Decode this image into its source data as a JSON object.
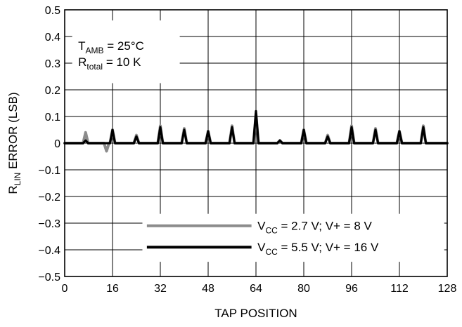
{
  "chart_data": {
    "type": "line",
    "xlabel": "TAP POSITION",
    "ylabel": {
      "main": "R",
      "sub": "LIN",
      "rest": " ERROR (LSB)"
    },
    "xlim": [
      0,
      128
    ],
    "ylim": [
      -0.5,
      0.5
    ],
    "xticks": [
      0,
      16,
      32,
      48,
      64,
      80,
      96,
      112,
      128
    ],
    "yticks": [
      0.5,
      0.4,
      0.3,
      0.2,
      0.1,
      0,
      -0.1,
      -0.2,
      -0.3,
      -0.4,
      -0.5
    ],
    "ytick_labels": [
      "0.5",
      "0.4",
      "0.3",
      "0.2",
      "0.1",
      "0",
      "−0.1",
      "−0.2",
      "−0.3",
      "−0.4",
      "−0.5"
    ],
    "grid": true,
    "annotations": [
      {
        "main": "T",
        "sub": "AMB",
        "rest": " = 25°C"
      },
      {
        "main": "R",
        "sub": "total",
        "rest": " = 10 K"
      }
    ],
    "legend_position": "bottom-right",
    "series": [
      {
        "legend": {
          "main": "V",
          "sub": "CC",
          "rest": " = 2.7 V; V+ = 8 V"
        },
        "color": "#8c8c8c",
        "peaks": [
          [
            7,
            0.04
          ],
          [
            14,
            -0.03
          ],
          [
            16,
            0.05
          ],
          [
            24,
            0.03
          ],
          [
            32,
            0.065
          ],
          [
            40,
            0.055
          ],
          [
            48,
            0.045
          ],
          [
            56,
            0.065
          ],
          [
            64,
            0.11
          ],
          [
            72,
            0.01
          ],
          [
            80,
            0.05
          ],
          [
            88,
            0.03
          ],
          [
            96,
            0.065
          ],
          [
            104,
            0.055
          ],
          [
            112,
            0.045
          ],
          [
            120,
            0.065
          ]
        ]
      },
      {
        "legend": {
          "main": "V",
          "sub": "CC",
          "rest": " = 5.5 V; V+ = 16 V"
        },
        "color": "#000000",
        "peaks": [
          [
            7,
            0.01
          ],
          [
            16,
            0.05
          ],
          [
            24,
            0.025
          ],
          [
            32,
            0.06
          ],
          [
            40,
            0.05
          ],
          [
            48,
            0.045
          ],
          [
            56,
            0.06
          ],
          [
            64,
            0.12
          ],
          [
            72,
            0.01
          ],
          [
            80,
            0.05
          ],
          [
            88,
            0.025
          ],
          [
            96,
            0.06
          ],
          [
            104,
            0.05
          ],
          [
            112,
            0.045
          ],
          [
            120,
            0.06
          ]
        ]
      }
    ]
  }
}
